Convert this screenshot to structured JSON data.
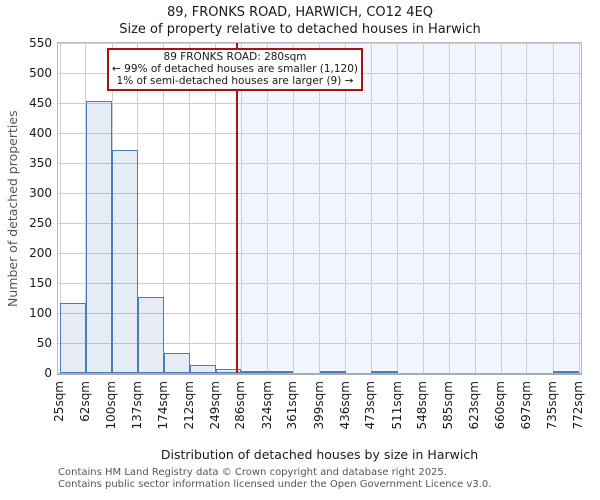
{
  "chart_data": {
    "type": "bar",
    "title": "89, FRONKS ROAD, HARWICH, CO12 4EQ",
    "subtitle": "Size of property relative to detached houses in Harwich",
    "xlabel": "Distribution of detached houses by size in Harwich",
    "ylabel": "Number of detached properties",
    "bin_edges_sqm": [
      25,
      62,
      100,
      137,
      174,
      212,
      249,
      286,
      324,
      361,
      399,
      436,
      473,
      511,
      548,
      585,
      623,
      660,
      697,
      735,
      772
    ],
    "tick_labels": [
      "25sqm",
      "62sqm",
      "100sqm",
      "137sqm",
      "174sqm",
      "212sqm",
      "249sqm",
      "286sqm",
      "324sqm",
      "361sqm",
      "399sqm",
      "436sqm",
      "473sqm",
      "511sqm",
      "548sqm",
      "585sqm",
      "623sqm",
      "660sqm",
      "697sqm",
      "735sqm",
      "772sqm"
    ],
    "values": [
      117,
      453,
      371,
      127,
      33,
      13,
      6,
      2,
      3,
      0,
      2,
      0,
      2,
      0,
      0,
      0,
      0,
      0,
      0,
      2
    ],
    "ylim": [
      0,
      550
    ],
    "ytick_step": 50,
    "grid": true,
    "legend_position": "none",
    "marker": {
      "value_sqm": 280,
      "annotation": [
        "89 FRONKS ROAD: 280sqm",
        "← 99% of detached houses are smaller (1,120)",
        "1% of semi-detached houses are larger (9) →"
      ]
    },
    "colors": {
      "bar_fill": "#4f81bd26",
      "bar_border": "#4a7ebb",
      "marker_line": "#aa1111",
      "annotation_border": "#aa1111",
      "shade_right_of_marker": "#f1f5fc",
      "grid": "#cdcdd2"
    }
  },
  "footer": {
    "line1": "Contains HM Land Registry data © Crown copyright and database right 2025.",
    "line2": "Contains public sector information licensed under the Open Government Licence v3.0."
  }
}
